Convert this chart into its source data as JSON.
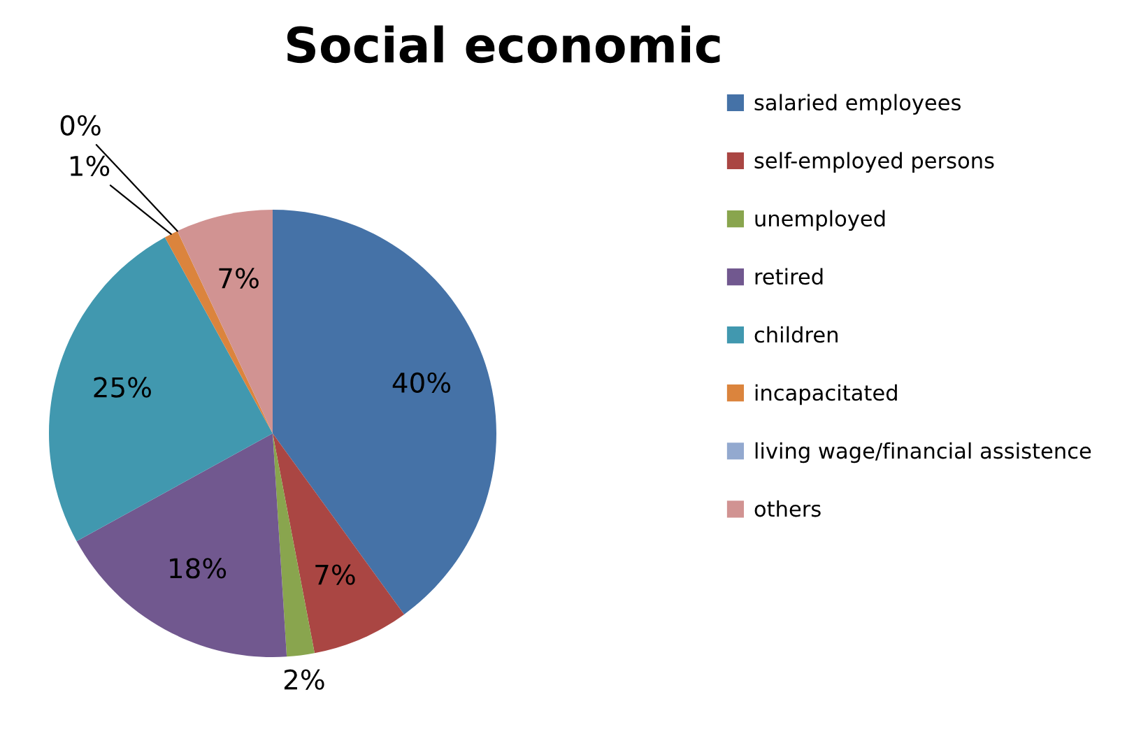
{
  "chart_data": {
    "type": "pie",
    "title": "Social economic",
    "categories": [
      "salaried employees",
      "self-employed persons",
      "unemployed",
      "retired",
      "children",
      "incapacitated",
      "living wage/financial assistence",
      "others"
    ],
    "values": [
      40,
      7,
      2,
      18,
      25,
      1,
      0,
      7
    ],
    "value_labels": [
      "40%",
      "7%",
      "2%",
      "18%",
      "25%",
      "1%",
      "0%",
      "7%"
    ],
    "colors": [
      "#4572a7",
      "#aa4643",
      "#89a54e",
      "#71588f",
      "#4198af",
      "#db843d",
      "#93a9cf",
      "#d19392"
    ],
    "legend": "right"
  }
}
